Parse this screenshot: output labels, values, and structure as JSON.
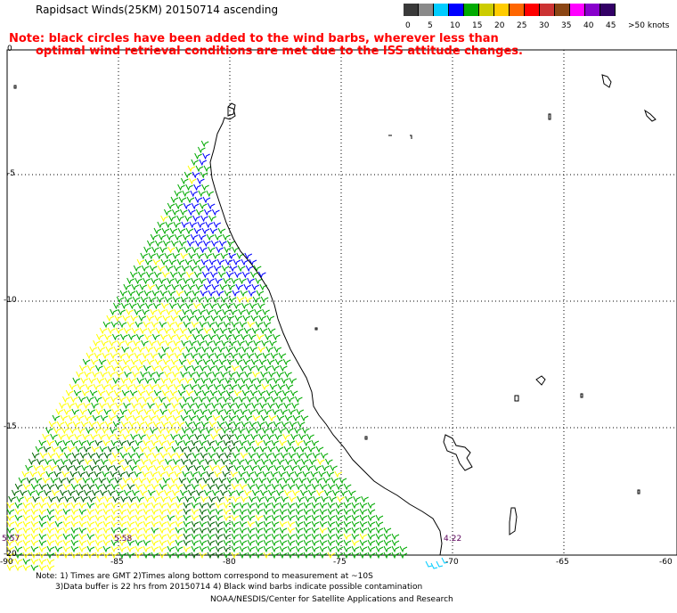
{
  "header": {
    "title": "Rapidsact Winds(25KM) 20150714 ascending",
    "note_line1": "Note: black circles have been added to the wind barbs, wherever less than",
    "note_line2": "optimal wind retrieval conditions are met due to the ISS attitude changes."
  },
  "color_scale": {
    "labels": [
      "0",
      "5",
      "10",
      "15",
      "20",
      "25",
      "30",
      "35",
      "40",
      "45",
      ">50 knots"
    ],
    "colors": [
      "#3a3a3a",
      "#8a8a8a",
      "#00ccff",
      "#0000ff",
      "#00aa00",
      "#cccc00",
      "#ffcc00",
      "#ff6600",
      "#ff0000",
      "#cc3333",
      "#8b4513",
      "#ff00ff",
      "#8800cc",
      "#330066"
    ]
  },
  "axes": {
    "lat_labels": [
      "0",
      "-5",
      "-10",
      "-15",
      "-20"
    ],
    "lon_labels": [
      "-90",
      "-85",
      "-80",
      "-75",
      "-70",
      "-65",
      "-60"
    ]
  },
  "swath_times": [
    "5:57",
    "5:58",
    "4:22"
  ],
  "footer": {
    "note_line1": "Note: 1) Times are GMT 2)Times along bottom correspond to measurement at ~10S",
    "note_line2": "3)Data buffer is 22 hrs from 20150714 4) Black wind barbs indicate possible contamination",
    "credit": "NOAA/NESDIS/Center for Satellite Applications and Research"
  }
}
